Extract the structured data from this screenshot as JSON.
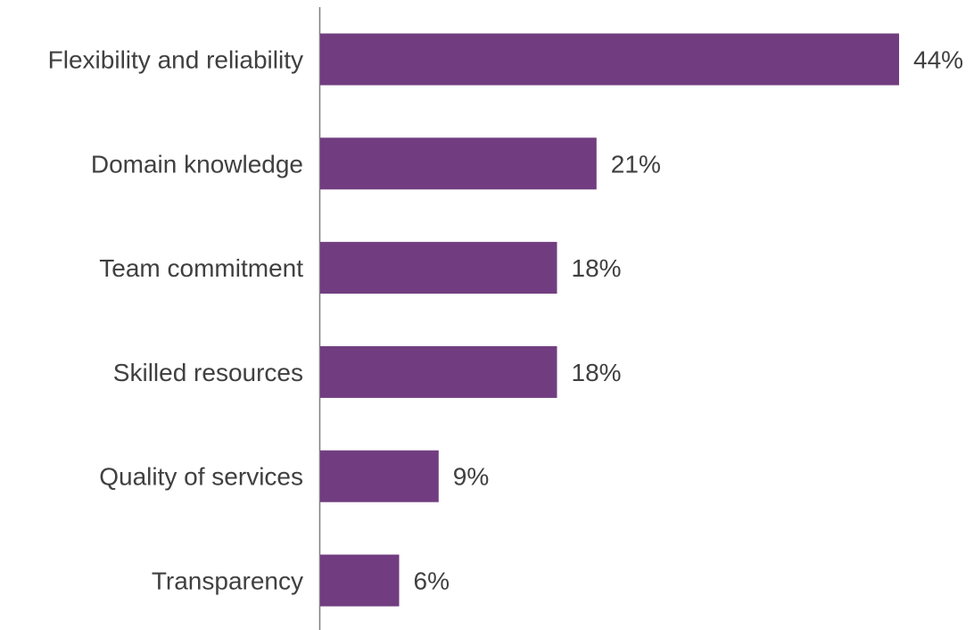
{
  "chart_data": {
    "type": "bar",
    "orientation": "horizontal",
    "categories": [
      "Flexibility and reliability",
      "Domain knowledge",
      "Team commitment",
      "Skilled resources",
      "Quality of services",
      "Transparency"
    ],
    "values": [
      44,
      21,
      18,
      18,
      9,
      6
    ],
    "value_labels": [
      "44%",
      "21%",
      "18%",
      "18%",
      "9%",
      "6%"
    ],
    "unit": "%",
    "title": "",
    "xlabel": "",
    "ylabel": "",
    "xlim": [
      0,
      44
    ],
    "grid": false,
    "legend": "none",
    "colors": {
      "bar": "#713D80",
      "axis": "#7F7F7F",
      "text": "#404040"
    }
  }
}
